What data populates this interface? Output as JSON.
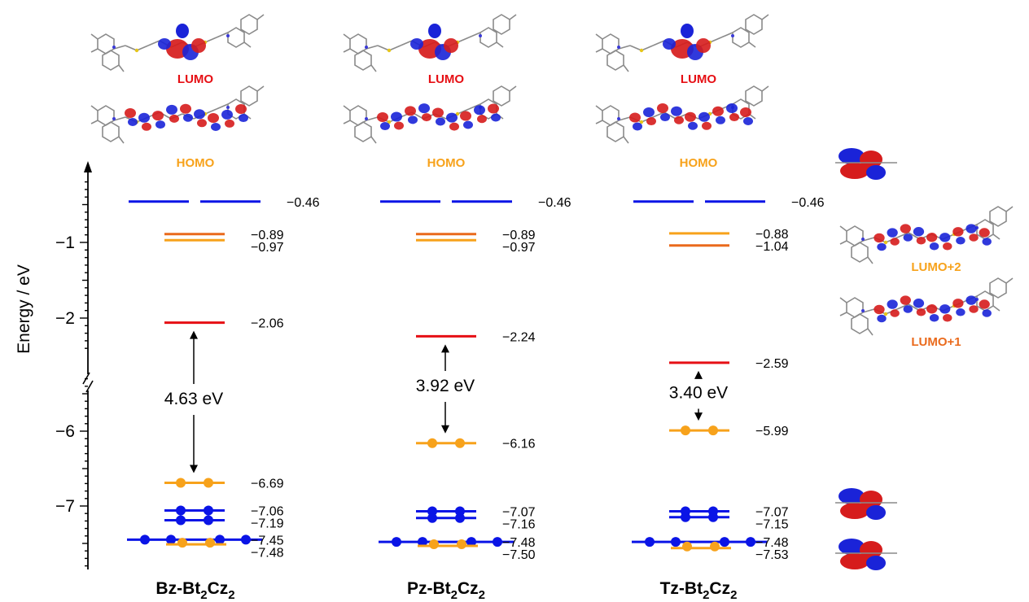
{
  "chart_data": {
    "type": "energy-level-diagram",
    "ylabel": "Energy  / eV",
    "yticks": [
      {
        "label": "−1",
        "value": -1
      },
      {
        "label": "−2",
        "value": -2
      },
      {
        "label": "−6",
        "value": -6
      },
      {
        "label": "−7",
        "value": -7
      }
    ],
    "axis_break": true,
    "colors": {
      "blue": "#0a14e6",
      "orange_light": "#f7a21b",
      "orange_dark": "#ea6a1c",
      "red": "#e60f14",
      "lumo_label": "#e60f14",
      "homo_label": "#f7a21b"
    },
    "molecules": [
      {
        "name_prefix": "Bz-Bt",
        "sub1": "2",
        "mid": "Cz",
        "sub2": "2",
        "lumo_label": "LUMO",
        "homo_label": "HOMO",
        "gap_label": "4.63 eV",
        "levels": [
          {
            "value": -0.46,
            "label": "−0.46",
            "color": "blue",
            "style": "split"
          },
          {
            "value": -0.89,
            "label": "−0.89",
            "color": "orange_dark"
          },
          {
            "value": -0.97,
            "label": "−0.97",
            "color": "orange_light"
          },
          {
            "value": -2.06,
            "label": "−2.06",
            "color": "red",
            "role": "lumo"
          },
          {
            "value": -6.69,
            "label": "−6.69",
            "color": "orange_light",
            "electrons": 2,
            "role": "homo"
          },
          {
            "value": -7.06,
            "label": "−7.06",
            "color": "blue",
            "electrons": 2
          },
          {
            "value": -7.19,
            "label": "−7.19",
            "color": "blue",
            "electrons": 2
          },
          {
            "value": -7.45,
            "label": "−7.45",
            "color": "blue",
            "electrons": 4,
            "style": "long"
          },
          {
            "value": -7.48,
            "label": "−7.48",
            "color": "orange_light",
            "electrons": 2,
            "style": "under"
          }
        ]
      },
      {
        "name_prefix": "Pz-Bt",
        "sub1": "2",
        "mid": "Cz",
        "sub2": "2",
        "lumo_label": "LUMO",
        "homo_label": "HOMO",
        "gap_label": "3.92 eV",
        "levels": [
          {
            "value": -0.46,
            "label": "−0.46",
            "color": "blue",
            "style": "split"
          },
          {
            "value": -0.89,
            "label": "−0.89",
            "color": "orange_dark"
          },
          {
            "value": -0.97,
            "label": "−0.97",
            "color": "orange_light"
          },
          {
            "value": -2.24,
            "label": "−2.24",
            "color": "red",
            "role": "lumo"
          },
          {
            "value": -6.16,
            "label": "−6.16",
            "color": "orange_light",
            "electrons": 2,
            "role": "homo"
          },
          {
            "value": -7.07,
            "label": "−7.07",
            "color": "blue",
            "electrons": 2
          },
          {
            "value": -7.16,
            "label": "−7.16",
            "color": "blue",
            "electrons": 2
          },
          {
            "value": -7.48,
            "label": "−7.48",
            "color": "blue",
            "electrons": 4,
            "style": "long"
          },
          {
            "value": -7.5,
            "label": "−7.50",
            "color": "orange_light",
            "electrons": 2,
            "style": "under"
          }
        ]
      },
      {
        "name_prefix": "Tz-Bt",
        "sub1": "2",
        "mid": "Cz",
        "sub2": "2",
        "lumo_label": "LUMO",
        "homo_label": "HOMO",
        "gap_label": "3.40 eV",
        "levels": [
          {
            "value": -0.46,
            "label": "−0.46",
            "color": "blue",
            "style": "split"
          },
          {
            "value": -0.88,
            "label": "−0.88",
            "color": "orange_light"
          },
          {
            "value": -1.04,
            "label": "−1.04",
            "color": "orange_dark"
          },
          {
            "value": -2.59,
            "label": "−2.59",
            "color": "red",
            "role": "lumo"
          },
          {
            "value": -5.99,
            "label": "−5.99",
            "color": "orange_light",
            "electrons": 2,
            "role": "homo"
          },
          {
            "value": -7.07,
            "label": "−7.07",
            "color": "blue",
            "electrons": 2
          },
          {
            "value": -7.15,
            "label": "−7.15",
            "color": "blue",
            "electrons": 2
          },
          {
            "value": -7.48,
            "label": "−7.48",
            "color": "blue",
            "electrons": 4,
            "style": "long"
          },
          {
            "value": -7.53,
            "label": "−7.53",
            "color": "orange_light",
            "electrons": 2,
            "style": "under"
          }
        ]
      }
    ],
    "side_orbitals": [
      {
        "label": "LUMO+2",
        "color": "orange_light"
      },
      {
        "label": "LUMO+1",
        "color": "orange_dark"
      }
    ]
  }
}
